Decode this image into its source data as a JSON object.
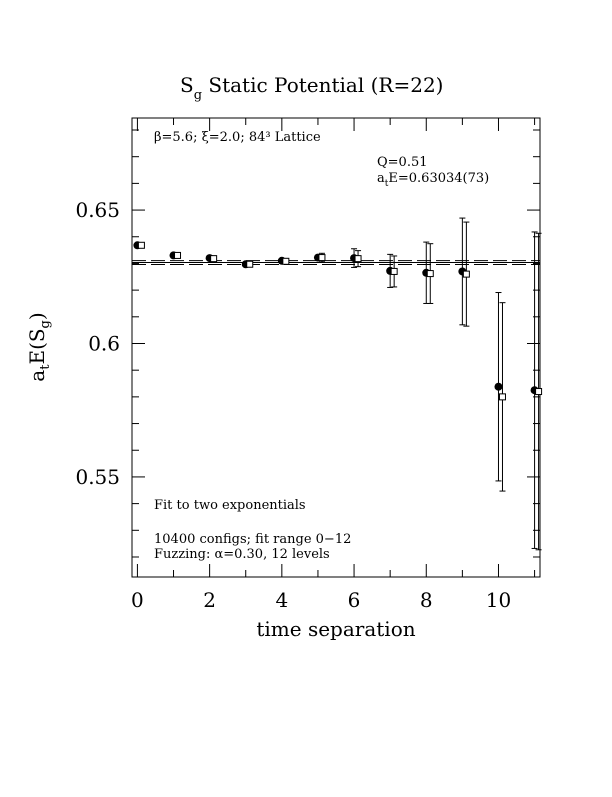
{
  "chart_data": {
    "type": "scatter",
    "title": "S_g Static Potential (R=22)",
    "title_main": "S",
    "title_sub": "g",
    "title_rest": " Static Potential (R=22)",
    "xlabel": "time separation",
    "ylabel": "a_tE(S_g)",
    "xlim": [
      -0.15,
      11.15
    ],
    "ylim": [
      0.5125,
      0.6845
    ],
    "x_ticks": [
      0,
      2,
      4,
      6,
      8,
      10
    ],
    "y_ticks": [
      0.55,
      0.6,
      0.65
    ],
    "y_tick_labels": [
      "0.55",
      "0.6",
      "0.65"
    ],
    "series": [
      {
        "marker": "filled-circle",
        "points": [
          {
            "x": 0,
            "y": 0.6368,
            "err": 0.0
          },
          {
            "x": 1,
            "y": 0.633,
            "err": 0.0
          },
          {
            "x": 2,
            "y": 0.632,
            "err": 0.0
          },
          {
            "x": 3,
            "y": 0.6297,
            "err": 0.0
          },
          {
            "x": 4,
            "y": 0.631,
            "err": 0.0
          },
          {
            "x": 5,
            "y": 0.6322,
            "err": 0.0
          },
          {
            "x": 6,
            "y": 0.632,
            "err": 0.0035
          },
          {
            "x": 7,
            "y": 0.6272,
            "err": 0.0062
          },
          {
            "x": 8,
            "y": 0.6265,
            "err": 0.0115
          },
          {
            "x": 9,
            "y": 0.627,
            "err": 0.02
          },
          {
            "x": 10,
            "y": 0.5838,
            "err": 0.0353
          },
          {
            "x": 11,
            "y": 0.5825,
            "err": 0.0593
          }
        ]
      },
      {
        "marker": "open-square",
        "points": [
          {
            "x": 0,
            "y": 0.6368,
            "err": 0.0
          },
          {
            "x": 1,
            "y": 0.633,
            "err": 0.0
          },
          {
            "x": 2,
            "y": 0.6318,
            "err": 0.0
          },
          {
            "x": 3,
            "y": 0.6297,
            "err": 0.0
          },
          {
            "x": 4,
            "y": 0.6308,
            "err": 0.0
          },
          {
            "x": 5,
            "y": 0.6322,
            "err": 0.0016
          },
          {
            "x": 6,
            "y": 0.6318,
            "err": 0.003
          },
          {
            "x": 7,
            "y": 0.627,
            "err": 0.0058
          },
          {
            "x": 8,
            "y": 0.6262,
            "err": 0.0112
          },
          {
            "x": 9,
            "y": 0.626,
            "err": 0.0195
          },
          {
            "x": 10,
            "y": 0.58,
            "err": 0.0353
          },
          {
            "x": 11,
            "y": 0.582,
            "err": 0.0593
          }
        ]
      }
    ],
    "fit": {
      "value": 0.63034,
      "error": 0.00073
    },
    "annotations": {
      "lattice": "β=5.6; ξ=2.0; 84³ Lattice",
      "q_value": "Q=0.51",
      "fit_result_prefix": "a",
      "fit_result_sub": "t",
      "fit_result_rest": "E=0.63034(73)",
      "fit_type": "Fit to two exponentials",
      "configs": "10400 configs; fit range 0−12",
      "fuzzing": "Fuzzing: α=0.30, 12 levels"
    },
    "grid": false
  }
}
